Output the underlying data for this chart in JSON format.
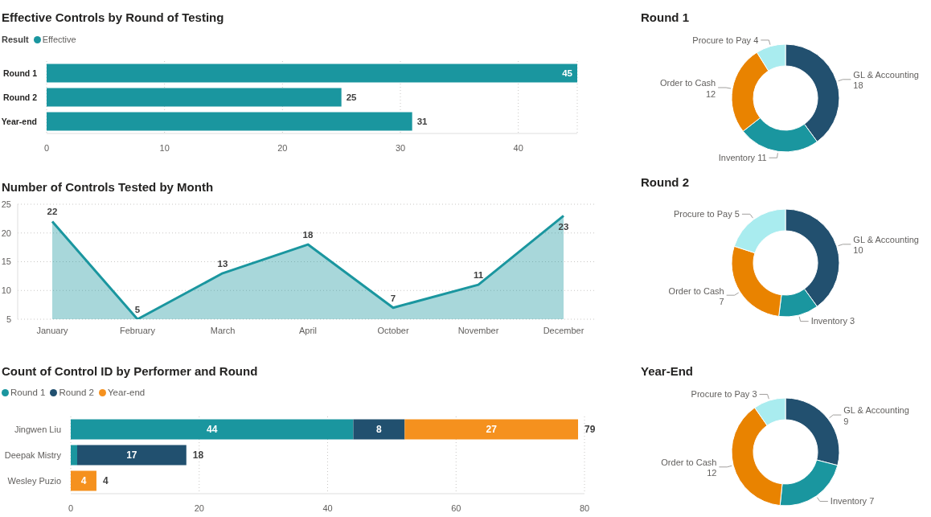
{
  "chart_data": [
    {
      "type": "bar",
      "orientation": "horizontal",
      "title": "Effective Controls by Round of Testing",
      "legend_title": "Result",
      "legend": "top left",
      "categories": [
        "Round 1",
        "Round 2",
        "Year-end"
      ],
      "series": [
        {
          "name": "Effective",
          "color": "#1a969f",
          "values": [
            45,
            25,
            31
          ]
        }
      ],
      "xlim": [
        0,
        45
      ],
      "xticks": [
        0,
        10,
        20,
        30,
        40
      ],
      "grid": "x",
      "data_labels": true
    },
    {
      "type": "donut",
      "title": "Round 1",
      "categories": [
        "GL & Accounting",
        "Inventory",
        "Order to Cash",
        "Procure to Pay"
      ],
      "values": [
        18,
        11,
        12,
        4
      ],
      "colors": [
        "#22506f",
        "#1a969f",
        "#e98300",
        "#a9ecef"
      ],
      "data_labels": true
    },
    {
      "type": "area",
      "title": "Number of Controls Tested by Month",
      "categories": [
        "January",
        "February",
        "March",
        "April",
        "October",
        "November",
        "December"
      ],
      "values": [
        22,
        5,
        13,
        18,
        7,
        11,
        23
      ],
      "color": "#1a969f",
      "ylim": [
        5,
        25
      ],
      "yticks": [
        5,
        10,
        15,
        20,
        25
      ],
      "grid": "y",
      "data_labels": true
    },
    {
      "type": "donut",
      "title": "Round 2",
      "categories": [
        "GL & Accounting",
        "Inventory",
        "Order to Cash",
        "Procure to Pay"
      ],
      "values": [
        10,
        3,
        7,
        5
      ],
      "colors": [
        "#22506f",
        "#1a969f",
        "#e98300",
        "#a9ecef"
      ],
      "data_labels": true
    },
    {
      "type": "bar",
      "orientation": "horizontal",
      "stacked": true,
      "title": "Count of Control ID by Performer and Round",
      "legend": "top left",
      "categories": [
        "Jingwen Liu",
        "Deepak Mistry",
        "Wesley Puzio"
      ],
      "series": [
        {
          "name": "Round 1",
          "color": "#1a969f",
          "values": [
            44,
            1,
            null
          ],
          "value_labels": [
            "44",
            null,
            null
          ]
        },
        {
          "name": "Round 2",
          "color": "#21506f",
          "values": [
            8,
            17,
            null
          ],
          "value_labels": [
            "8",
            "17",
            null
          ]
        },
        {
          "name": "Year-end",
          "color": "#f5911e",
          "values": [
            27,
            null,
            4
          ],
          "value_labels": [
            "27",
            null,
            "4"
          ]
        }
      ],
      "totals": [
        "79",
        "18",
        "4"
      ],
      "xlim": [
        0,
        80
      ],
      "xticks": [
        0,
        20,
        40,
        60,
        80
      ],
      "grid": "x"
    },
    {
      "type": "donut",
      "title": "Year-End",
      "categories": [
        "GL & Accounting",
        "Inventory",
        "Order to Cash",
        "Procure to Pay"
      ],
      "values": [
        9,
        7,
        12,
        3
      ],
      "colors": [
        "#22506f",
        "#1a969f",
        "#e98300",
        "#a9ecef"
      ],
      "data_labels": true
    }
  ]
}
